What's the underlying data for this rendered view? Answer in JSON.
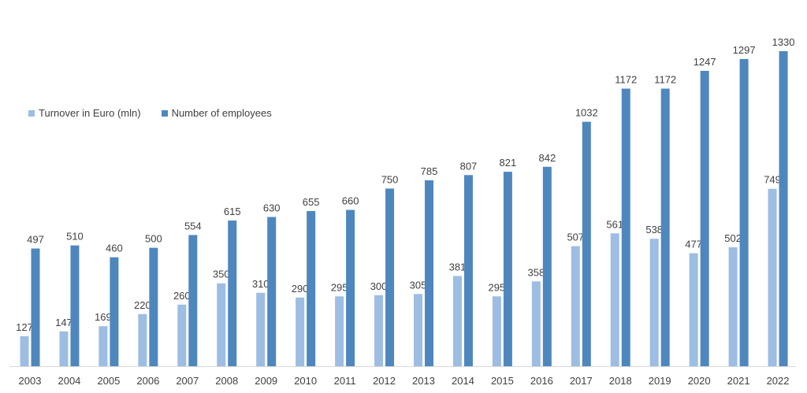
{
  "chart_data": {
    "type": "bar",
    "categories": [
      "2003",
      "2004",
      "2005",
      "2006",
      "2007",
      "2008",
      "2009",
      "2010",
      "2011",
      "2012",
      "2013",
      "2014",
      "2015",
      "2016",
      "2017",
      "2018",
      "2019",
      "2020",
      "2021",
      "2022"
    ],
    "series": [
      {
        "name": "Turnover in Euro (mln)",
        "values": [
          127,
          147,
          169,
          220,
          260,
          350,
          310,
          290,
          295,
          300,
          305,
          381,
          295,
          358,
          507,
          561,
          538,
          477,
          502,
          749
        ],
        "color": "#9dbde2"
      },
      {
        "name": "Number of employees",
        "values": [
          497,
          510,
          460,
          500,
          554,
          615,
          630,
          655,
          660,
          750,
          785,
          807,
          821,
          842,
          1032,
          1172,
          1172,
          1247,
          1297,
          1330
        ],
        "color": "#4e87be"
      }
    ],
    "ylim": [
      0,
      1400
    ],
    "grid": false,
    "legend_position": "top-left",
    "data_labels": true
  }
}
